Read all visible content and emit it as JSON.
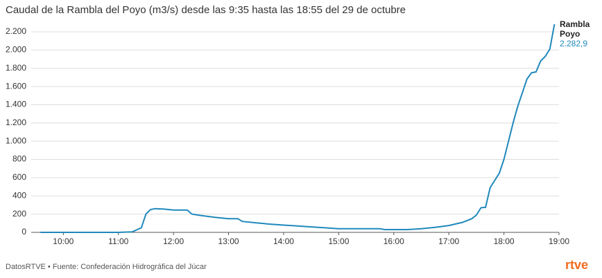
{
  "chart_data": {
    "type": "line",
    "title": "Caudal de la Rambla del Poyo (m3/s) desde las 9:35 hasta las 18:55 del 29 de octubre",
    "x": [
      "9:35",
      "10:00",
      "10:30",
      "11:00",
      "11:15",
      "11:25",
      "11:30",
      "11:35",
      "11:40",
      "11:50",
      "12:00",
      "12:15",
      "12:20",
      "12:30",
      "12:45",
      "13:00",
      "13:10",
      "13:15",
      "13:30",
      "13:45",
      "14:00",
      "14:15",
      "14:30",
      "14:45",
      "15:00",
      "15:30",
      "15:45",
      "15:50",
      "16:00",
      "16:15",
      "16:30",
      "16:45",
      "17:00",
      "17:15",
      "17:25",
      "17:30",
      "17:35",
      "17:40",
      "17:45",
      "17:55",
      "18:00",
      "18:05",
      "18:10",
      "18:15",
      "18:20",
      "18:25",
      "18:30",
      "18:35",
      "18:40",
      "18:45",
      "18:50",
      "18:55"
    ],
    "series": [
      {
        "name": "Rambla Poyo",
        "color": "#1f88bb",
        "values": [
          0,
          0,
          0,
          0,
          5,
          50,
          200,
          250,
          260,
          255,
          245,
          245,
          200,
          185,
          165,
          150,
          150,
          120,
          105,
          90,
          80,
          70,
          60,
          50,
          40,
          40,
          40,
          30,
          30,
          30,
          40,
          55,
          75,
          110,
          150,
          190,
          270,
          275,
          490,
          650,
          800,
          1000,
          1200,
          1380,
          1530,
          1680,
          1750,
          1760,
          1880,
          1930,
          2010,
          2282.9
        ],
        "value_labels": [
          null,
          null,
          null,
          null,
          null,
          null,
          null,
          null,
          null,
          null,
          null,
          null,
          null,
          null,
          null,
          null,
          null,
          null,
          null,
          null,
          null,
          null,
          null,
          null,
          null,
          null,
          null,
          null,
          null,
          null,
          null,
          null,
          null,
          null,
          null,
          null,
          null,
          null,
          null,
          null,
          null,
          null,
          null,
          null,
          null,
          null,
          null,
          null,
          null,
          null,
          null,
          "2.282,9"
        ]
      }
    ],
    "xlim": [
      "9:25",
      "19:00"
    ],
    "xticks": [
      "10:00",
      "11:00",
      "12:00",
      "13:00",
      "14:00",
      "15:00",
      "16:00",
      "17:00",
      "18:00",
      "19:00"
    ],
    "ylim": [
      0,
      2200
    ],
    "yticks": [
      0,
      {
        "value": 200,
        "label": "200"
      },
      {
        "value": 400,
        "label": "400"
      },
      {
        "value": 600,
        "label": "600"
      },
      {
        "value": 800,
        "label": "800"
      },
      {
        "value": 1000,
        "label": "1.000"
      },
      {
        "value": 1200,
        "label": "1.200"
      },
      {
        "value": 1400,
        "label": "1.400"
      },
      {
        "value": 1600,
        "label": "1.600"
      },
      {
        "value": 1800,
        "label": "1.800"
      },
      {
        "value": 2000,
        "label": "2.000"
      },
      {
        "value": 2200,
        "label": "2.200"
      }
    ],
    "grid": true,
    "source": "DatosRTVE • Fuente: Confederación Hidrográfica del Júcar",
    "logo": "rtve"
  }
}
